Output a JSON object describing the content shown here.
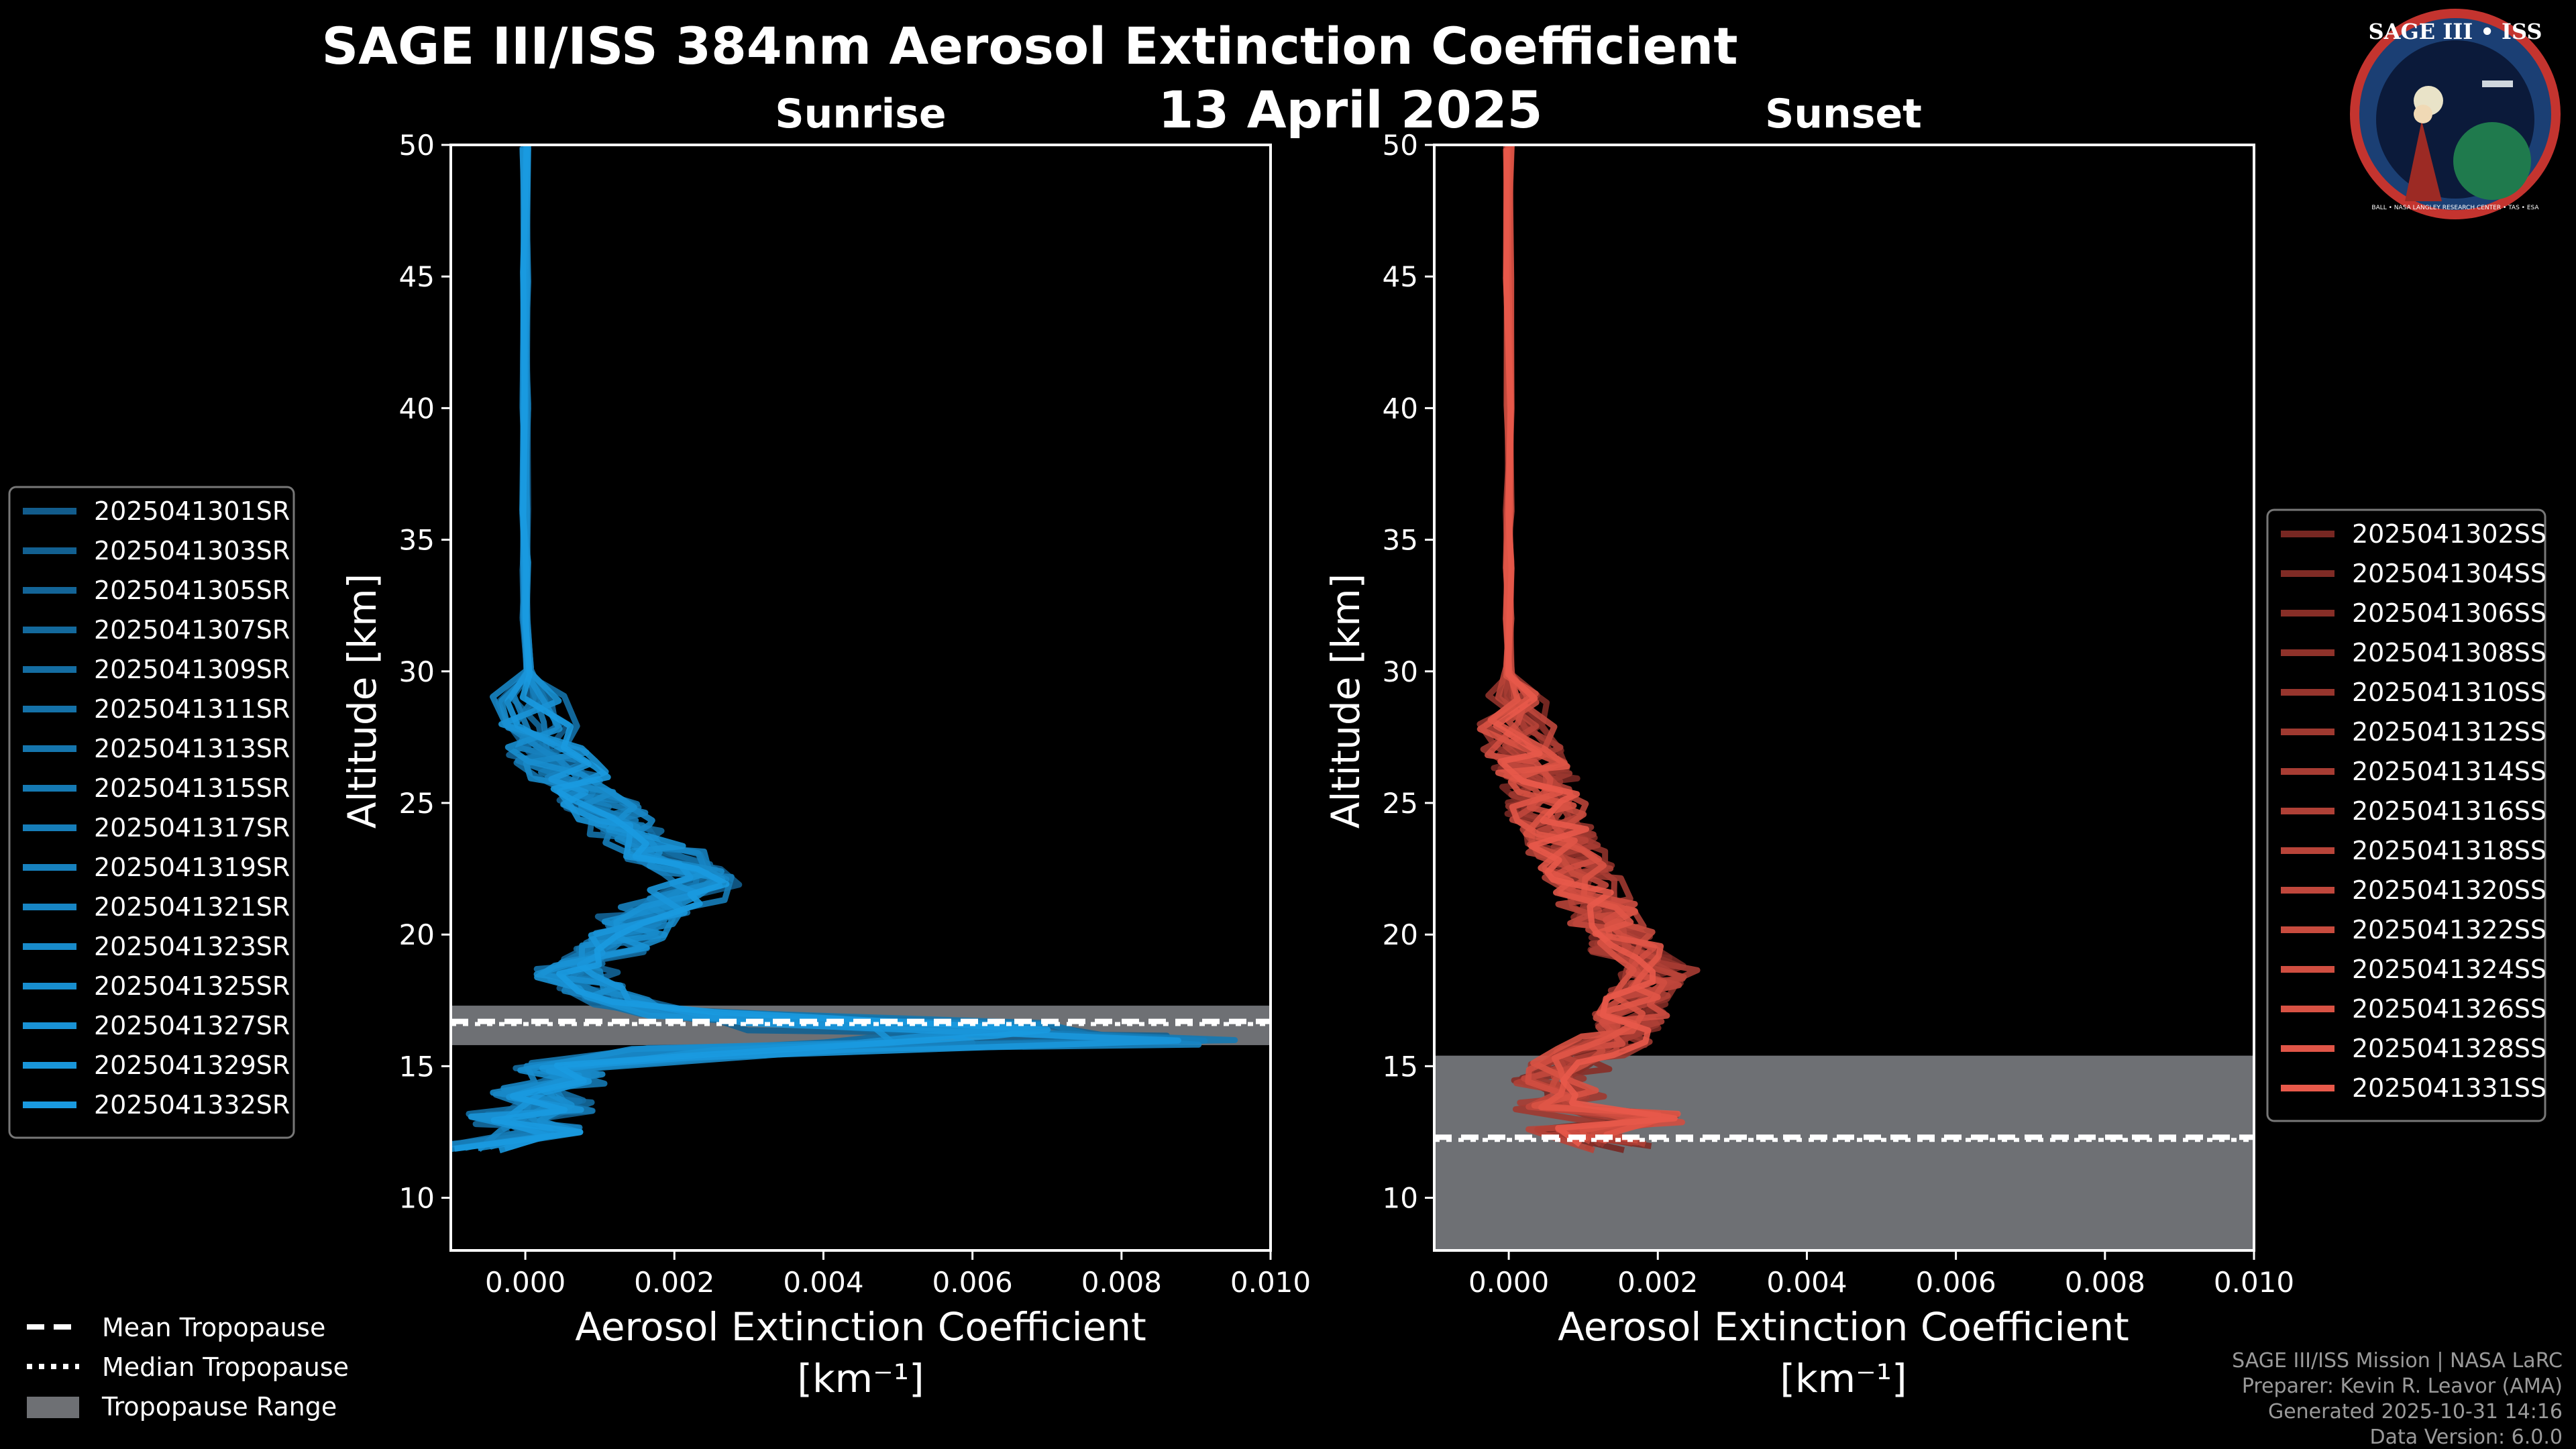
{
  "title": "SAGE III/ISS 384nm Aerosol Extinction Coefficient",
  "date": "13 April 2025",
  "logo": {
    "text": "SAGE III • ISS",
    "ring_text": "BALL • NASA LANGLEY RESEARCH CENTER • TAS • ESA"
  },
  "footer": {
    "mission": "SAGE III/ISS Mission | NASA LaRC",
    "preparer": "Preparer: Kevin R. Leavor (AMA)",
    "generated": "Generated 2025-10-31 14:16",
    "version": "Data Version: 6.0.0"
  },
  "bottom_legend": {
    "mean": "Mean Tropopause",
    "median": "Median Tropopause",
    "range": "Tropopause Range"
  },
  "chart_data": [
    {
      "type": "line",
      "title": "Sunrise",
      "xlabel": "Aerosol Extinction Coefficient",
      "xunit": "[km⁻¹]",
      "ylabel": "Altitude [km]",
      "xlim": [
        -0.001,
        0.01
      ],
      "ylim": [
        8,
        50
      ],
      "xticks": [
        "0.000",
        "0.002",
        "0.004",
        "0.006",
        "0.008",
        "0.010"
      ],
      "xtick_values": [
        0,
        0.002,
        0.004,
        0.006,
        0.008,
        0.01
      ],
      "yticks": [
        "10",
        "15",
        "20",
        "25",
        "30",
        "35",
        "40",
        "45",
        "50"
      ],
      "ytick_values": [
        10,
        15,
        20,
        25,
        30,
        35,
        40,
        45,
        50
      ],
      "tropopause": {
        "mean": 16.7,
        "median": 16.6,
        "range": [
          15.8,
          17.3
        ]
      },
      "color_dark": "#0d3b5e",
      "color_light": "#1a9ae0",
      "series": [
        {
          "name": "2025041301SR"
        },
        {
          "name": "2025041303SR"
        },
        {
          "name": "2025041305SR"
        },
        {
          "name": "2025041307SR"
        },
        {
          "name": "2025041309SR"
        },
        {
          "name": "2025041311SR"
        },
        {
          "name": "2025041313SR"
        },
        {
          "name": "2025041315SR"
        },
        {
          "name": "2025041317SR"
        },
        {
          "name": "2025041319SR"
        },
        {
          "name": "2025041321SR"
        },
        {
          "name": "2025041323SR"
        },
        {
          "name": "2025041325SR"
        },
        {
          "name": "2025041327SR"
        },
        {
          "name": "2025041329SR"
        },
        {
          "name": "2025041332SR"
        }
      ],
      "profile": {
        "altitudes": [
          12,
          12.5,
          13,
          13.5,
          14,
          14.5,
          15,
          15.5,
          16,
          16.5,
          17,
          17.5,
          18,
          18.5,
          19,
          19.5,
          20,
          20.5,
          21,
          21.5,
          22,
          22.5,
          23,
          23.5,
          24,
          24.5,
          25,
          25.5,
          26,
          26.5,
          27,
          28,
          29,
          30,
          32,
          34,
          36,
          40,
          45,
          50
        ],
        "values": [
          -0.0008,
          0.0002,
          -0.0003,
          0.0004,
          0.0,
          0.0006,
          0.0004,
          0.003,
          0.008,
          0.006,
          0.002,
          0.0012,
          0.0008,
          0.0007,
          0.0009,
          0.0011,
          0.0014,
          0.0015,
          0.0018,
          0.0022,
          0.0024,
          0.0022,
          0.0019,
          0.0016,
          0.0014,
          0.0012,
          0.001,
          0.0008,
          0.0006,
          0.0004,
          0.0003,
          0.0002,
          0.0001,
          5e-05,
          0.0,
          0.0,
          0.0,
          0.0,
          0.0,
          0.0
        ]
      }
    },
    {
      "type": "line",
      "title": "Sunset",
      "xlabel": "Aerosol Extinction Coefficient",
      "xunit": "[km⁻¹]",
      "ylabel": "Altitude [km]",
      "xlim": [
        -0.001,
        0.01
      ],
      "ylim": [
        8,
        50
      ],
      "xticks": [
        "0.000",
        "0.002",
        "0.004",
        "0.006",
        "0.008",
        "0.010"
      ],
      "xtick_values": [
        0,
        0.002,
        0.004,
        0.006,
        0.008,
        0.01
      ],
      "yticks": [
        "10",
        "15",
        "20",
        "25",
        "30",
        "35",
        "40",
        "45",
        "50"
      ],
      "ytick_values": [
        10,
        15,
        20,
        25,
        30,
        35,
        40,
        45,
        50
      ],
      "tropopause": {
        "mean": 12.3,
        "median": 12.2,
        "range": [
          8,
          15.4
        ]
      },
      "color_dark": "#3a0c0c",
      "color_light": "#e8594a",
      "series": [
        {
          "name": "2025041302SS"
        },
        {
          "name": "2025041304SS"
        },
        {
          "name": "2025041306SS"
        },
        {
          "name": "2025041308SS"
        },
        {
          "name": "2025041310SS"
        },
        {
          "name": "2025041312SS"
        },
        {
          "name": "2025041314SS"
        },
        {
          "name": "2025041316SS"
        },
        {
          "name": "2025041318SS"
        },
        {
          "name": "2025041320SS"
        },
        {
          "name": "2025041322SS"
        },
        {
          "name": "2025041324SS"
        },
        {
          "name": "2025041326SS"
        },
        {
          "name": "2025041328SS"
        },
        {
          "name": "2025041331SS"
        }
      ],
      "profile": {
        "altitudes": [
          12,
          12.5,
          13,
          13.5,
          14,
          14.5,
          15,
          15.5,
          16,
          16.5,
          17,
          17.5,
          18,
          18.5,
          19,
          19.5,
          20,
          20.5,
          21,
          21.5,
          22,
          22.5,
          23,
          23.5,
          24,
          24.5,
          25,
          25.5,
          26,
          26.5,
          27,
          28,
          29,
          30,
          32,
          34,
          36,
          40,
          45,
          50
        ],
        "values": [
          0.0015,
          0.0008,
          0.0018,
          0.0005,
          0.001,
          0.0006,
          0.0008,
          0.001,
          0.0014,
          0.0016,
          0.0017,
          0.0018,
          0.0019,
          0.002,
          0.0018,
          0.0016,
          0.0015,
          0.0013,
          0.0012,
          0.0011,
          0.001,
          0.0009,
          0.0008,
          0.0007,
          0.0006,
          0.0005,
          0.0005,
          0.0004,
          0.0004,
          0.0003,
          0.0002,
          0.0001,
          5e-05,
          0.0,
          0.0,
          0.0,
          0.0,
          0.0,
          0.0,
          0.0
        ]
      }
    }
  ]
}
